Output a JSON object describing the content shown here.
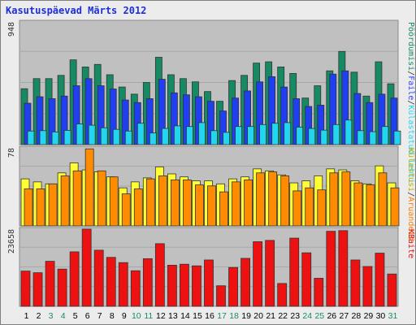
{
  "window": {
    "title": "Kasutuspäevad Märts 2012"
  },
  "chart_data": {
    "title": "Kasutuspäevad Märts 2012",
    "categories": [
      "1",
      "2",
      "3",
      "4",
      "5",
      "6",
      "7",
      "8",
      "9",
      "10",
      "11",
      "12",
      "13",
      "14",
      "15",
      "16",
      "17",
      "18",
      "19",
      "20",
      "21",
      "22",
      "23",
      "24",
      "25",
      "26",
      "27",
      "28",
      "29",
      "30",
      "31"
    ],
    "weekend_categories": [
      "3",
      "4",
      "10",
      "11",
      "17",
      "18",
      "24",
      "25",
      "31"
    ],
    "colors": {
      "weekday_label": "#000000",
      "weekend_label": "#1c8a6a"
    },
    "panels": [
      {
        "type": "bar",
        "ymax_label": "948",
        "ylim": [
          0,
          948
        ],
        "legend": [
          {
            "text": "Pöördumisi",
            "color": "#1c8a6a"
          },
          {
            "text": "Faile",
            "color": "#2d44ff"
          },
          {
            "text": "Külastatud lehti",
            "color": "#22d6f0"
          }
        ],
        "series": [
          {
            "name": "Pöördumisi",
            "color": "#158a63",
            "values": [
              432,
              510,
              510,
              535,
              655,
              600,
              620,
              540,
              445,
              390,
              480,
              675,
              540,
              510,
              485,
              410,
              335,
              495,
              535,
              630,
              640,
              600,
              550,
              360,
              455,
              570,
              720,
              560,
              375,
              640,
              470
            ]
          },
          {
            "name": "Faile",
            "color": "#1f3ff0",
            "values": [
              320,
              370,
              355,
              375,
              455,
              510,
              455,
              430,
              345,
              325,
              355,
              505,
              400,
              385,
              370,
              335,
              260,
              360,
              415,
              485,
              525,
              445,
              355,
              295,
              305,
              545,
              570,
              395,
              325,
              390,
              360
            ]
          },
          {
            "name": "Külastatud lehti",
            "color": "#22d6f0",
            "values": [
              105,
              108,
              98,
              110,
              160,
              150,
              130,
              118,
              105,
              165,
              90,
              125,
              145,
              140,
              170,
              108,
              95,
              140,
              140,
              155,
              165,
              170,
              135,
              125,
              112,
              155,
              190,
              108,
              100,
              140,
              105
            ]
          }
        ]
      },
      {
        "type": "bar",
        "ymax_label": "78",
        "ylim": [
          0,
          78
        ],
        "legend": [
          {
            "text": "Külastusi",
            "color": "#c4b000"
          },
          {
            "text": "Aruandeid",
            "color": "#ff7f00"
          }
        ],
        "series": [
          {
            "name": "Külastusi",
            "color": "#ffff33",
            "values": [
              47,
              44,
              42,
              53,
              63,
              56,
              54,
              49,
              38,
              44,
              48,
              59,
              52,
              49,
              45,
              45,
              42,
              47,
              49,
              57,
              55,
              51,
              43,
              45,
              50,
              57,
              56,
              45,
              42,
              60,
              43
            ]
          },
          {
            "name": "Aruandeid",
            "color": "#ff8c00",
            "values": [
              37,
              37,
              42,
              50,
              55,
              77,
              55,
              49,
              32,
              37,
              47,
              50,
              46,
              46,
              41,
              40,
              34,
              44,
              46,
              53,
              54,
              50,
              35,
              38,
              36,
              53,
              54,
              43,
              41,
              53,
              38
            ]
          }
        ]
      },
      {
        "type": "bar",
        "ymax_label": "23658",
        "ylim": [
          0,
          23658
        ],
        "legend": [
          {
            "text": "KBaite",
            "color": "#e01010"
          }
        ],
        "series": [
          {
            "name": "KBaite",
            "color": "#ee1111",
            "values": [
              10800,
              10300,
              13800,
              11400,
              16700,
              23658,
              17200,
              15000,
              13400,
              10900,
              14600,
              19200,
              12600,
              12900,
              12400,
              14200,
              6300,
              11900,
              14700,
              19800,
              20200,
              7000,
              20900,
              16400,
              8600,
              23000,
              23200,
              14200,
              12200,
              16300,
              9900
            ]
          }
        ]
      }
    ]
  }
}
